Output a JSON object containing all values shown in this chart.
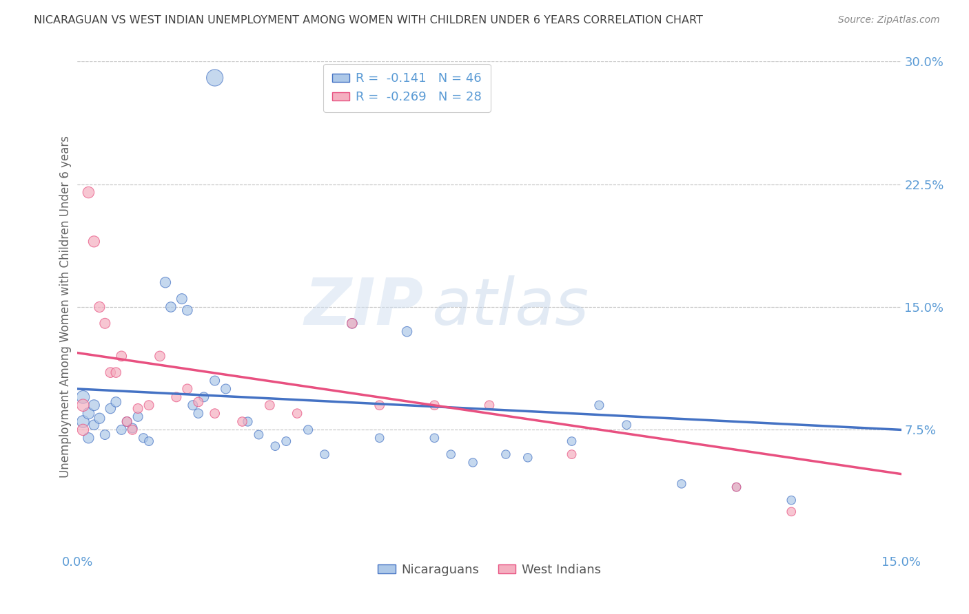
{
  "title": "NICARAGUAN VS WEST INDIAN UNEMPLOYMENT AMONG WOMEN WITH CHILDREN UNDER 6 YEARS CORRELATION CHART",
  "source": "Source: ZipAtlas.com",
  "ylabel": "Unemployment Among Women with Children Under 6 years",
  "xlim": [
    0.0,
    0.15
  ],
  "ylim": [
    0.0,
    0.3
  ],
  "yticks": [
    0.075,
    0.15,
    0.225,
    0.3
  ],
  "ytick_labels": [
    "7.5%",
    "15.0%",
    "22.5%",
    "30.0%"
  ],
  "xticks": [
    0.0,
    0.025,
    0.05,
    0.075,
    0.1,
    0.125,
    0.15
  ],
  "xtick_labels": [
    "0.0%",
    "",
    "",
    "",
    "",
    "",
    "15.0%"
  ],
  "color_blue": "#adc8e8",
  "color_blue_line": "#4472c4",
  "color_pink": "#f4afc0",
  "color_pink_line": "#e85080",
  "color_axis_labels": "#5b9bd5",
  "background": "#ffffff",
  "grid_color": "#c8c8c8",
  "title_color": "#404040",
  "watermark_zip": "ZIP",
  "watermark_atlas": "atlas",
  "blue_x": [
    0.001,
    0.001,
    0.002,
    0.002,
    0.003,
    0.003,
    0.004,
    0.005,
    0.006,
    0.007,
    0.008,
    0.009,
    0.01,
    0.011,
    0.012,
    0.013,
    0.016,
    0.017,
    0.019,
    0.02,
    0.021,
    0.022,
    0.023,
    0.025,
    0.027,
    0.031,
    0.033,
    0.036,
    0.038,
    0.042,
    0.045,
    0.05,
    0.055,
    0.06,
    0.065,
    0.068,
    0.072,
    0.078,
    0.082,
    0.09,
    0.095,
    0.1,
    0.11,
    0.12,
    0.13,
    0.025
  ],
  "blue_y": [
    0.095,
    0.08,
    0.085,
    0.07,
    0.09,
    0.078,
    0.082,
    0.072,
    0.088,
    0.092,
    0.075,
    0.08,
    0.076,
    0.083,
    0.07,
    0.068,
    0.165,
    0.15,
    0.155,
    0.148,
    0.09,
    0.085,
    0.095,
    0.105,
    0.1,
    0.08,
    0.072,
    0.065,
    0.068,
    0.075,
    0.06,
    0.14,
    0.07,
    0.135,
    0.07,
    0.06,
    0.055,
    0.06,
    0.058,
    0.068,
    0.09,
    0.078,
    0.042,
    0.04,
    0.032,
    0.29
  ],
  "pink_x": [
    0.001,
    0.001,
    0.002,
    0.003,
    0.004,
    0.005,
    0.006,
    0.007,
    0.008,
    0.009,
    0.01,
    0.011,
    0.013,
    0.015,
    0.018,
    0.02,
    0.022,
    0.025,
    0.03,
    0.035,
    0.04,
    0.05,
    0.055,
    0.065,
    0.075,
    0.09,
    0.12,
    0.13
  ],
  "pink_y": [
    0.09,
    0.075,
    0.22,
    0.19,
    0.15,
    0.14,
    0.11,
    0.11,
    0.12,
    0.08,
    0.075,
    0.088,
    0.09,
    0.12,
    0.095,
    0.1,
    0.092,
    0.085,
    0.08,
    0.09,
    0.085,
    0.14,
    0.09,
    0.09,
    0.09,
    0.06,
    0.04,
    0.025
  ],
  "blue_sizes": [
    180,
    160,
    140,
    120,
    130,
    110,
    120,
    100,
    110,
    110,
    100,
    100,
    100,
    100,
    90,
    85,
    120,
    110,
    115,
    110,
    100,
    95,
    100,
    100,
    100,
    90,
    85,
    82,
    85,
    88,
    82,
    110,
    82,
    108,
    82,
    80,
    80,
    80,
    80,
    82,
    88,
    82,
    80,
    80,
    80,
    300
  ],
  "pink_sizes": [
    160,
    140,
    140,
    135,
    120,
    115,
    110,
    108,
    112,
    100,
    98,
    100,
    100,
    110,
    100,
    100,
    98,
    96,
    94,
    96,
    94,
    108,
    96,
    94,
    94,
    84,
    82,
    82
  ]
}
